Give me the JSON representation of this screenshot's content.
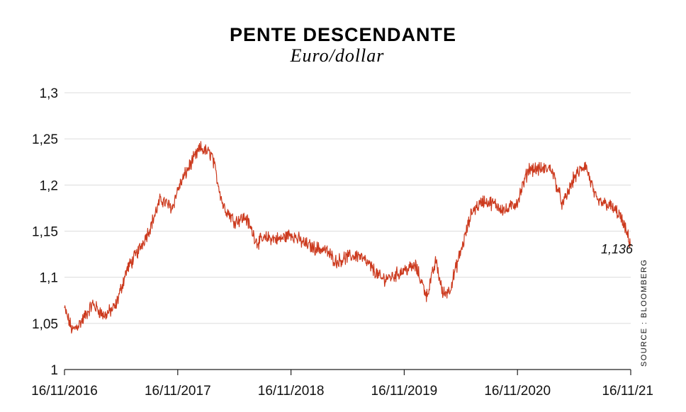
{
  "chart_data": {
    "type": "line",
    "title": "PENTE DESCENDANTE",
    "subtitle": "Euro/dollar",
    "x_labels": [
      "16/11/2016",
      "16/11/2017",
      "16/11/2018",
      "16/11/2019",
      "16/11/2020",
      "16/11/21"
    ],
    "y_ticks": [
      "1",
      "1,05",
      "1,1",
      "1,15",
      "1,2",
      "1,25",
      "1,3"
    ],
    "ylim": [
      1,
      1.3
    ],
    "grid": "horizontal",
    "last_value_label": "1,136",
    "source": "SOURCE : BLOOMBERG",
    "line_color": "#cc3a1e",
    "series": [
      {
        "x": [
          0,
          0.07,
          0.15,
          0.25,
          0.35,
          0.45,
          0.55,
          0.65,
          0.75,
          0.85,
          0.95,
          1.0,
          1.1,
          1.2,
          1.3,
          1.4,
          1.5,
          1.6,
          1.7,
          1.8,
          1.9,
          2.0,
          2.1,
          2.2,
          2.3,
          2.4,
          2.5,
          2.6,
          2.7,
          2.8,
          2.9,
          3.0,
          3.1,
          3.2,
          3.28,
          3.34,
          3.4,
          3.5,
          3.6,
          3.7,
          3.8,
          3.9,
          4.0,
          4.1,
          4.2,
          4.3,
          4.4,
          4.5,
          4.6,
          4.7,
          4.8,
          4.9,
          5.0
        ],
        "y": [
          1.066,
          1.042,
          1.052,
          1.071,
          1.058,
          1.068,
          1.108,
          1.128,
          1.152,
          1.185,
          1.175,
          1.195,
          1.22,
          1.24,
          1.233,
          1.178,
          1.161,
          1.165,
          1.138,
          1.143,
          1.141,
          1.147,
          1.138,
          1.132,
          1.13,
          1.117,
          1.122,
          1.124,
          1.112,
          1.098,
          1.101,
          1.108,
          1.112,
          1.08,
          1.118,
          1.082,
          1.086,
          1.128,
          1.172,
          1.183,
          1.179,
          1.172,
          1.182,
          1.218,
          1.217,
          1.218,
          1.178,
          1.208,
          1.222,
          1.182,
          1.179,
          1.168,
          1.136
        ]
      }
    ]
  }
}
